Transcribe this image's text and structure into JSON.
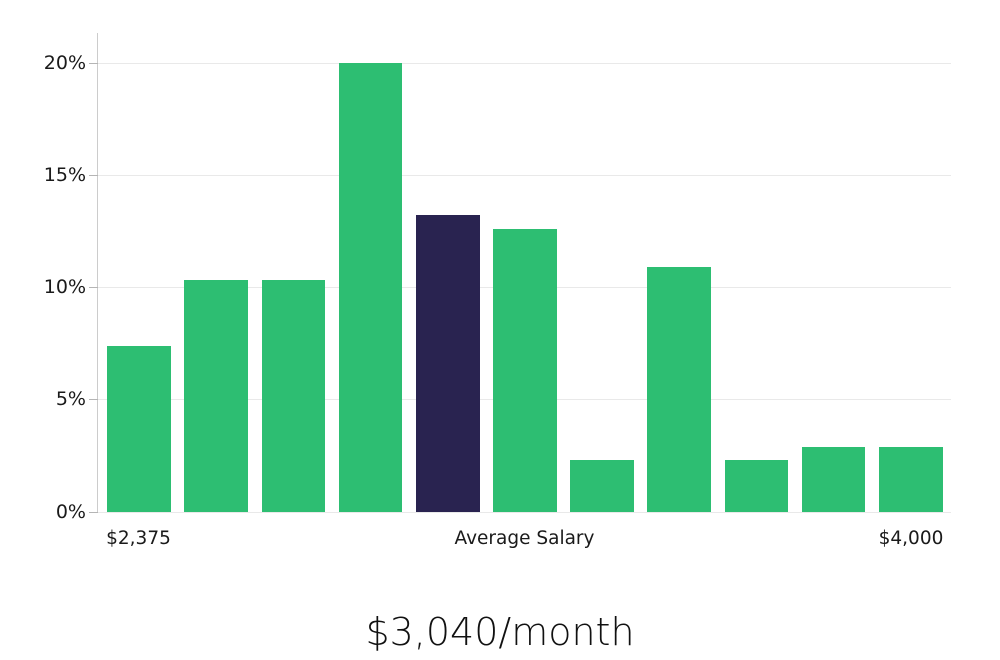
{
  "chart_data": {
    "type": "bar",
    "title": "$3,040/month",
    "subtitle": "",
    "xlabel": "Average Salary",
    "ylabel": "",
    "x_axis_labels": {
      "left": "$2,375",
      "center": "Average Salary",
      "right": "$4,000"
    },
    "y_ticks": [
      {
        "value": 0,
        "label": "0%"
      },
      {
        "value": 5,
        "label": "5%"
      },
      {
        "value": 10,
        "label": "10%"
      },
      {
        "value": 15,
        "label": "15%"
      },
      {
        "value": 20,
        "label": "20%"
      }
    ],
    "ylim": [
      0,
      20
    ],
    "grid": true,
    "legend_position": "none",
    "values": [
      7.4,
      10.3,
      10.3,
      20.0,
      13.2,
      12.6,
      2.3,
      10.9,
      2.3,
      2.9,
      2.9
    ],
    "highlight_index": 4,
    "highlight_meaning": "average salary bar",
    "colors": {
      "bar": "#2dbe72",
      "highlight": "#292350",
      "grid": "#e9e9e9",
      "axis": "#cccccc",
      "tick": "#b5b5b5",
      "text": "#1a1a1a"
    }
  }
}
